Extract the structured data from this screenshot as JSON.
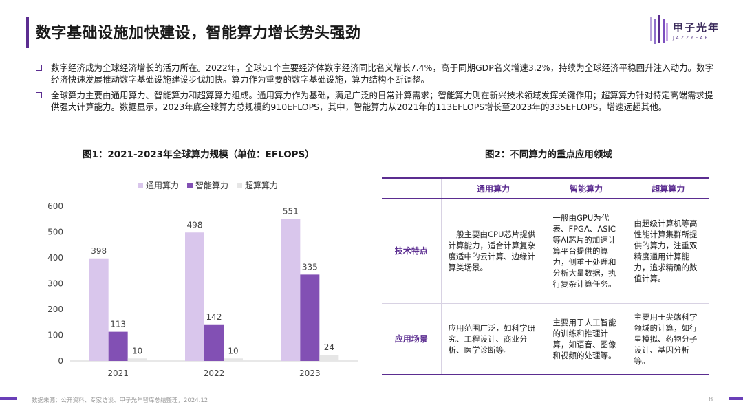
{
  "header": {
    "title": "数字基础设施加快建设，智能算力增长势头强劲",
    "logo_name": "甲子光年",
    "logo_sub": "JAZZYEAR"
  },
  "bullets": [
    "数字经济成为全球经济增长的活力所在。2022年，全球51个主要经济体数字经济同比名义增长7.4%，高于同期GDP名义增速3.2%，持续为全球经济平稳回升注入动力。数字经济快速发展推动数字基础设施建设步伐加快。算力作为重要的数字基础设施，算力结构不断调整。",
    "全球算力主要由通用算力、智能算力和超算算力组成。通用算力作为基础，满足广泛的日常计算需求；智能算力则在新兴技术领域发挥关键作用；超算算力针对特定高端需求提供强大计算能力。数据显示，2023年底全球算力总规模约910EFLOPS，其中，智能算力从2021年的113EFLOPS增长至2023年的335EFLOPS，增速远超其他。"
  ],
  "fig1_title": "图1：2021-2023年全球算力规模（单位：EFLOPS）",
  "fig2_title": "图2：不同算力的重点应用领域",
  "chart_data": {
    "type": "bar",
    "title": "图1：2021-2023年全球算力规模（单位：EFLOPS）",
    "categories": [
      "2021",
      "2022",
      "2023"
    ],
    "series": [
      {
        "name": "通用算力",
        "values": [
          398,
          498,
          551
        ],
        "color": "#d9c6ec"
      },
      {
        "name": "智能算力",
        "values": [
          113,
          142,
          335
        ],
        "color": "#8250b4"
      },
      {
        "name": "超算算力",
        "values": [
          10,
          10,
          24
        ],
        "color": "#e6e6e6"
      }
    ],
    "ylim": [
      0,
      600
    ],
    "yticks": [
      0,
      100,
      200,
      300,
      400,
      500,
      600
    ],
    "grid": false,
    "legend_position": "top-left"
  },
  "table": {
    "headers": [
      "",
      "通用算力",
      "智能算力",
      "超算算力"
    ],
    "rows": [
      {
        "label": "技术特点",
        "cells": [
          "一般主要由CPU芯片提供计算能力，适合计算复杂度适中的云计算、边缘计算类场景。",
          "一般由GPU为代表、FPGA、ASIC等AI芯片的加速计算平台提供的算力，侧重于处理和分析大量数据，执行复杂计算任务。",
          "由超级计算机等高性能计算集群所提供的算力，注重双精度通用计算能力，追求精确的数值计算。"
        ]
      },
      {
        "label": "应用场景",
        "cells": [
          "应用范围广泛，如科学研究、工程设计、商业分析、医学诊断等。",
          "主要用于人工智能的训练和推理计算，如语音、图像和视频的处理等。",
          "主要用于尖端科学领域的计算，如行星模拟、药物分子设计、基因分析等。"
        ]
      }
    ]
  },
  "footer": {
    "source": "数据来源：公开资料、专家访谈、甲子光年智库总结整理，2024.12",
    "page": "8"
  },
  "colors": {
    "accent": "#5b2d90",
    "footer_accent": "#6a3fb8"
  }
}
